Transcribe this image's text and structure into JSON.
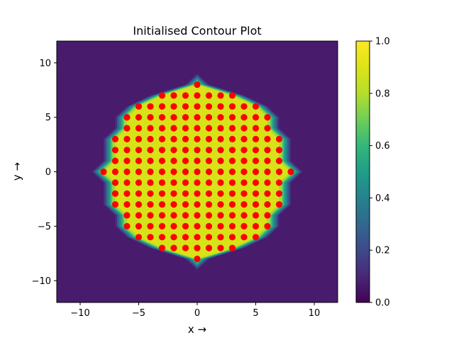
{
  "chart_data": {
    "type": "heatmap",
    "title": "Initialised Contour Plot",
    "xlabel": "x →",
    "ylabel": "y →",
    "xlim": [
      -12,
      12
    ],
    "ylim": [
      -12,
      12
    ],
    "xticks": [
      -10,
      -5,
      0,
      5,
      10
    ],
    "yticks": [
      -10,
      -5,
      0,
      5,
      10
    ],
    "grid": false,
    "colormap": "viridis",
    "colorbar": {
      "range": [
        0,
        1
      ],
      "ticks": [
        "0.0",
        "0.2",
        "0.4",
        "0.6",
        "0.8",
        "1.0"
      ]
    },
    "field": {
      "description": "value 1.0 on lattice points shown, 0.0 elsewhere",
      "inside_value": 1.0,
      "outside_value": 0.0
    },
    "points": {
      "color": "#ff0000",
      "rows": [
        {
          "y": 8,
          "x": [
            0
          ]
        },
        {
          "y": 7,
          "x": [
            -3,
            -2,
            -1,
            0,
            1,
            2,
            3
          ]
        },
        {
          "y": 6,
          "x": [
            -5,
            -4,
            -3,
            -2,
            -1,
            0,
            1,
            2,
            3,
            4,
            5
          ]
        },
        {
          "y": 5,
          "x": [
            -6,
            -5,
            -4,
            -3,
            -2,
            -1,
            0,
            1,
            2,
            3,
            4,
            5,
            6
          ]
        },
        {
          "y": 4,
          "x": [
            -6,
            -5,
            -4,
            -3,
            -2,
            -1,
            0,
            1,
            2,
            3,
            4,
            5,
            6
          ]
        },
        {
          "y": 3,
          "x": [
            -7,
            -6,
            -5,
            -4,
            -3,
            -2,
            -1,
            0,
            1,
            2,
            3,
            4,
            5,
            6,
            7
          ]
        },
        {
          "y": 2,
          "x": [
            -7,
            -6,
            -5,
            -4,
            -3,
            -2,
            -1,
            0,
            1,
            2,
            3,
            4,
            5,
            6,
            7
          ]
        },
        {
          "y": 1,
          "x": [
            -7,
            -6,
            -5,
            -4,
            -3,
            -2,
            -1,
            0,
            1,
            2,
            3,
            4,
            5,
            6,
            7
          ]
        },
        {
          "y": 0,
          "x": [
            -8,
            -7,
            -6,
            -5,
            -4,
            -3,
            -2,
            -1,
            0,
            1,
            2,
            3,
            4,
            5,
            6,
            7,
            8
          ]
        },
        {
          "y": -1,
          "x": [
            -7,
            -6,
            -5,
            -4,
            -3,
            -2,
            -1,
            0,
            1,
            2,
            3,
            4,
            5,
            6,
            7
          ]
        },
        {
          "y": -2,
          "x": [
            -7,
            -6,
            -5,
            -4,
            -3,
            -2,
            -1,
            0,
            1,
            2,
            3,
            4,
            5,
            6,
            7
          ]
        },
        {
          "y": -3,
          "x": [
            -7,
            -6,
            -5,
            -4,
            -3,
            -2,
            -1,
            0,
            1,
            2,
            3,
            4,
            5,
            6,
            7
          ]
        },
        {
          "y": -4,
          "x": [
            -6,
            -5,
            -4,
            -3,
            -2,
            -1,
            0,
            1,
            2,
            3,
            4,
            5,
            6
          ]
        },
        {
          "y": -5,
          "x": [
            -6,
            -5,
            -4,
            -3,
            -2,
            -1,
            0,
            1,
            2,
            3,
            4,
            5,
            6
          ]
        },
        {
          "y": -6,
          "x": [
            -5,
            -4,
            -3,
            -2,
            -1,
            0,
            1,
            2,
            3,
            4,
            5
          ]
        },
        {
          "y": -7,
          "x": [
            -3,
            -2,
            -1,
            0,
            1,
            2,
            3
          ]
        },
        {
          "y": -8,
          "x": [
            0
          ]
        }
      ]
    }
  }
}
